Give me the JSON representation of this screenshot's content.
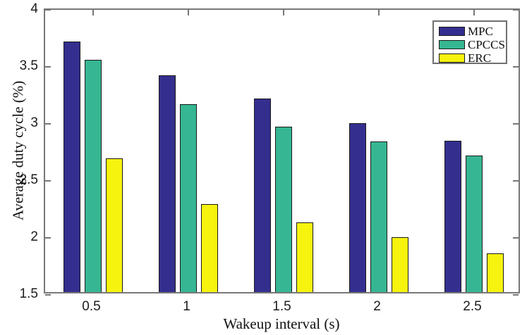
{
  "chart_data": {
    "type": "bar",
    "title": "",
    "xlabel": "Wakeup interval (s)",
    "ylabel": "Average duty cycle (%)",
    "categories": [
      "0.5",
      "1",
      "1.5",
      "2",
      "2.5"
    ],
    "series": [
      {
        "name": "MPC",
        "color": "#342e8e",
        "values": [
          3.7,
          3.4,
          3.2,
          2.98,
          2.83
        ]
      },
      {
        "name": "CPCCS",
        "color": "#36b692",
        "values": [
          3.54,
          3.15,
          2.95,
          2.82,
          2.7
        ]
      },
      {
        "name": "ERC",
        "color": "#f6f30e",
        "values": [
          2.67,
          2.27,
          2.11,
          1.98,
          1.84
        ]
      }
    ],
    "ylim": [
      1.5,
      4
    ],
    "yticks": [
      1.5,
      2,
      2.5,
      3,
      3.5,
      4
    ],
    "ytick_labels": [
      "1.5",
      "2",
      "2.5",
      "3",
      "3.5",
      "4"
    ],
    "grid": false,
    "legend_position": "top-right",
    "bar_edge_color": "#1a1a1a",
    "axis_frame_color": "#787878",
    "tick_text_color": "#1c1c1c",
    "title_text_color": "#111111",
    "background_color": "#ffffff"
  }
}
